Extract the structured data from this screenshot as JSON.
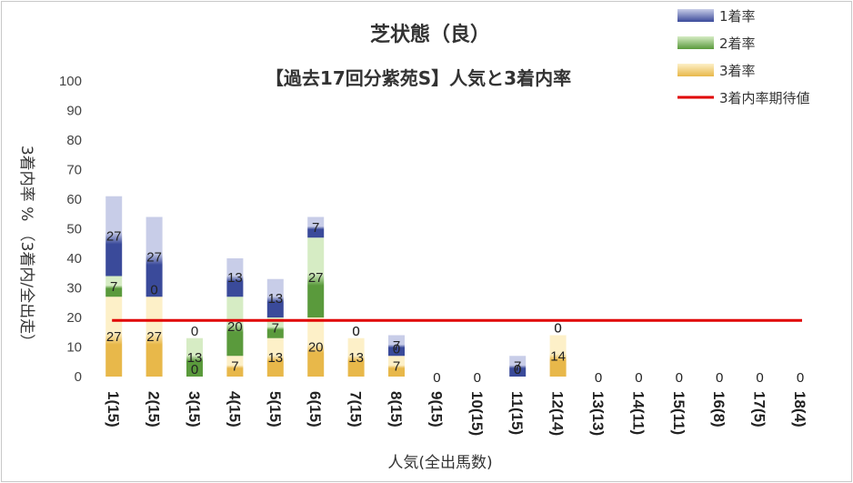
{
  "chart_data": {
    "type": "bar",
    "stacked": true,
    "title": "芝状態（良）",
    "subtitle": "【過去17回分紫苑S】人気と3着内率",
    "xlabel": "人気(全出馬数)",
    "ylabel": "3着内率 % （3着内/全出走）",
    "ylim": [
      0,
      100
    ],
    "ytick_step": 10,
    "categories": [
      "1(15)",
      "2(15)",
      "3(15)",
      "4(15)",
      "5(15)",
      "6(15)",
      "7(15)",
      "8(15)",
      "9(15)",
      "10(15)",
      "11(15)",
      "12(14)",
      "13(13)",
      "14(11)",
      "15(11)",
      "16(8)",
      "17(5)",
      "18(4)"
    ],
    "series": [
      {
        "name": "3着率",
        "color": "#e8b84a",
        "values": [
          27,
          27,
          0,
          7,
          13,
          20,
          13,
          7,
          0,
          0,
          0,
          14,
          0,
          0,
          0,
          0,
          0,
          0
        ]
      },
      {
        "name": "2着率",
        "color": "#5a9a3c",
        "values": [
          7,
          0,
          13,
          20,
          7,
          27,
          0,
          0,
          0,
          0,
          0,
          0,
          0,
          0,
          0,
          0,
          0,
          0
        ]
      },
      {
        "name": "1着率",
        "color": "#3a4a9a",
        "values": [
          27,
          27,
          0,
          13,
          13,
          7,
          0,
          7,
          0,
          0,
          7,
          0,
          0,
          0,
          0,
          0,
          0,
          0
        ]
      }
    ],
    "reference_line": {
      "name": "3着内率期待値",
      "value": 19,
      "color": "#e00000"
    },
    "legend_position": "top-right",
    "grid": false
  }
}
